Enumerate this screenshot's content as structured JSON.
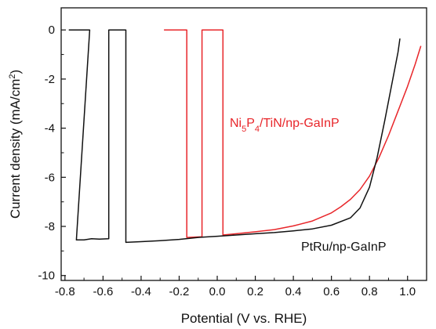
{
  "chart_data": {
    "type": "line",
    "title": "",
    "xlabel": "Potential (V vs. RHE)",
    "ylabel": "Current density (mA/cm",
    "ylabel_sup": "2",
    "ylabel_end": ")",
    "xlim": [
      -0.82,
      1.1
    ],
    "ylim": [
      -10.2,
      0.9
    ],
    "x_ticks": [
      -0.8,
      -0.6,
      -0.4,
      -0.2,
      0.0,
      0.2,
      0.4,
      0.6,
      0.8,
      1.0
    ],
    "x_tick_labels": [
      "-0.8",
      "-0.6",
      "-0.4",
      "-0.2",
      "0.0",
      "0.2",
      "0.4",
      "0.6",
      "0.8",
      "1.0"
    ],
    "y_ticks": [
      0,
      -2,
      -4,
      -6,
      -8,
      -10
    ],
    "y_tick_labels": [
      "0",
      "-2",
      "-4",
      "-6",
      "-8",
      "-10"
    ],
    "grid": false,
    "series": [
      {
        "label_parts": [
          "Ni",
          "5",
          "P",
          "4",
          "/TiN/np-GaInP"
        ],
        "color": "#e8262a",
        "points": [
          [
            -0.28,
            0
          ],
          [
            -0.16,
            0
          ],
          [
            -0.16,
            -8.45
          ],
          [
            -0.08,
            -8.42
          ],
          [
            -0.08,
            0
          ],
          [
            0.03,
            0
          ],
          [
            0.03,
            -8.35
          ],
          [
            0.1,
            -8.3
          ],
          [
            0.2,
            -8.22
          ],
          [
            0.3,
            -8.13
          ],
          [
            0.4,
            -7.98
          ],
          [
            0.5,
            -7.78
          ],
          [
            0.6,
            -7.45
          ],
          [
            0.65,
            -7.2
          ],
          [
            0.7,
            -6.9
          ],
          [
            0.75,
            -6.5
          ],
          [
            0.8,
            -5.95
          ],
          [
            0.85,
            -5.2
          ],
          [
            0.9,
            -4.3
          ],
          [
            0.95,
            -3.3
          ],
          [
            1.0,
            -2.3
          ],
          [
            1.04,
            -1.4
          ],
          [
            1.07,
            -0.65
          ]
        ]
      },
      {
        "label": "PtRu/np-GaInP",
        "color": "#111111",
        "points": [
          [
            -0.78,
            0
          ],
          [
            -0.67,
            0
          ],
          [
            -0.74,
            -8.55
          ],
          [
            -0.7,
            -8.55
          ],
          [
            -0.66,
            -8.5
          ],
          [
            -0.62,
            -8.52
          ],
          [
            -0.57,
            -8.5
          ],
          [
            -0.57,
            0
          ],
          [
            -0.48,
            0
          ],
          [
            -0.48,
            -8.65
          ],
          [
            -0.4,
            -8.62
          ],
          [
            -0.3,
            -8.58
          ],
          [
            -0.2,
            -8.53
          ],
          [
            -0.1,
            -8.45
          ],
          [
            0.0,
            -8.4
          ],
          [
            0.1,
            -8.35
          ],
          [
            0.2,
            -8.3
          ],
          [
            0.3,
            -8.25
          ],
          [
            0.4,
            -8.18
          ],
          [
            0.5,
            -8.1
          ],
          [
            0.6,
            -7.95
          ],
          [
            0.7,
            -7.65
          ],
          [
            0.75,
            -7.25
          ],
          [
            0.8,
            -6.4
          ],
          [
            0.84,
            -5.2
          ],
          [
            0.88,
            -3.7
          ],
          [
            0.92,
            -2.1
          ],
          [
            0.95,
            -0.9
          ],
          [
            0.96,
            -0.35
          ]
        ]
      }
    ]
  }
}
